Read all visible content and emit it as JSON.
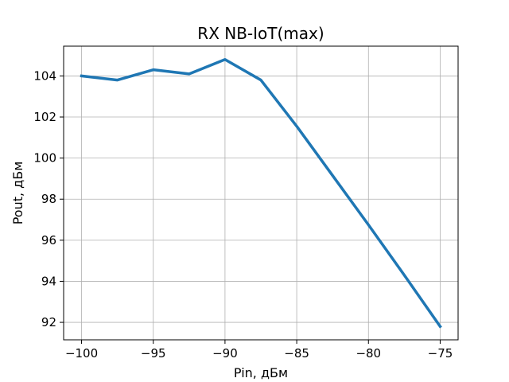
{
  "chart_data": {
    "type": "line",
    "title": "RX NB-IoT(max)",
    "xlabel": "Pin, дБм",
    "ylabel": "Pout, дБм",
    "xlim": [
      -101.25,
      -73.75
    ],
    "ylim": [
      91.15,
      105.45
    ],
    "x_ticks": [
      -100,
      -95,
      -90,
      -85,
      -80,
      -75
    ],
    "x_tick_labels": [
      "−100",
      "−95",
      "−90",
      "−85",
      "−80",
      "−75"
    ],
    "y_ticks": [
      92,
      94,
      96,
      98,
      100,
      102,
      104
    ],
    "y_tick_labels": [
      "92",
      "94",
      "96",
      "98",
      "100",
      "102",
      "104"
    ],
    "grid": true,
    "series": [
      {
        "x": [
          -100,
          -97.5,
          -95,
          -92.5,
          -90,
          -87.5,
          -85,
          -82.5,
          -80,
          -77.5,
          -75
        ],
        "y": [
          104.0,
          103.8,
          104.3,
          104.1,
          104.8,
          103.8,
          101.55,
          99.15,
          96.75,
          94.3,
          91.8
        ],
        "color": "#1f77b4"
      }
    ]
  }
}
